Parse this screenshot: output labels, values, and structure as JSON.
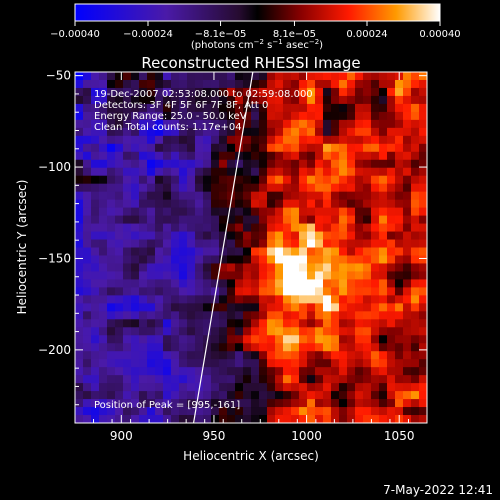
{
  "chart_data": {
    "type": "heatmap",
    "title": "Reconstructed RHESSI Image",
    "xlabel": "Heliocentric X (arcsec)",
    "ylabel": "Heliocentric Y (arcsec)",
    "xlim": [
      875,
      1065
    ],
    "ylim": [
      -240,
      -48
    ],
    "x_ticks": [
      900,
      950,
      1000,
      1050
    ],
    "y_ticks": [
      -50,
      -100,
      -150,
      -200
    ],
    "x_tick_labels": [
      "900",
      "950",
      "1000",
      "1050"
    ],
    "y_tick_labels": [
      "−50",
      "−100",
      "−150",
      "−200"
    ],
    "colorbar": {
      "range": [
        -0.0004,
        0.0004
      ],
      "ticks": [
        -0.0004,
        -0.00024,
        -8.1e-05,
        8.1e-05,
        0.00024,
        0.0004
      ],
      "tick_labels": [
        "−0.00040",
        "−0.00024",
        "−8.1e−05",
        "8.1e−05",
        "0.00024",
        "0.00040"
      ],
      "unit_label": "(photons cm",
      "unit_sup1": "−2",
      "unit_mid": " s",
      "unit_sup2": "−1",
      "unit_mid2": " asec",
      "unit_sup3": "−2",
      "unit_end": ")"
    },
    "annotations": [
      "19-Dec-2007 02:53:08.000 to 02:59:08.000",
      "Detectors: 3F 4F 5F 6F 7F 8F, Att 0",
      "Energy Range: 25.0 - 50.0 keV",
      "Clean    Total counts: 1.17e+04"
    ],
    "peak_label": "Position of Peak = [995,-161]",
    "peak": [
      995,
      -161
    ],
    "limb_line": [
      [
        939,
        -240
      ],
      [
        971,
        -48
      ]
    ],
    "grid": false
  },
  "timestamp": "7-May-2022 12:41"
}
